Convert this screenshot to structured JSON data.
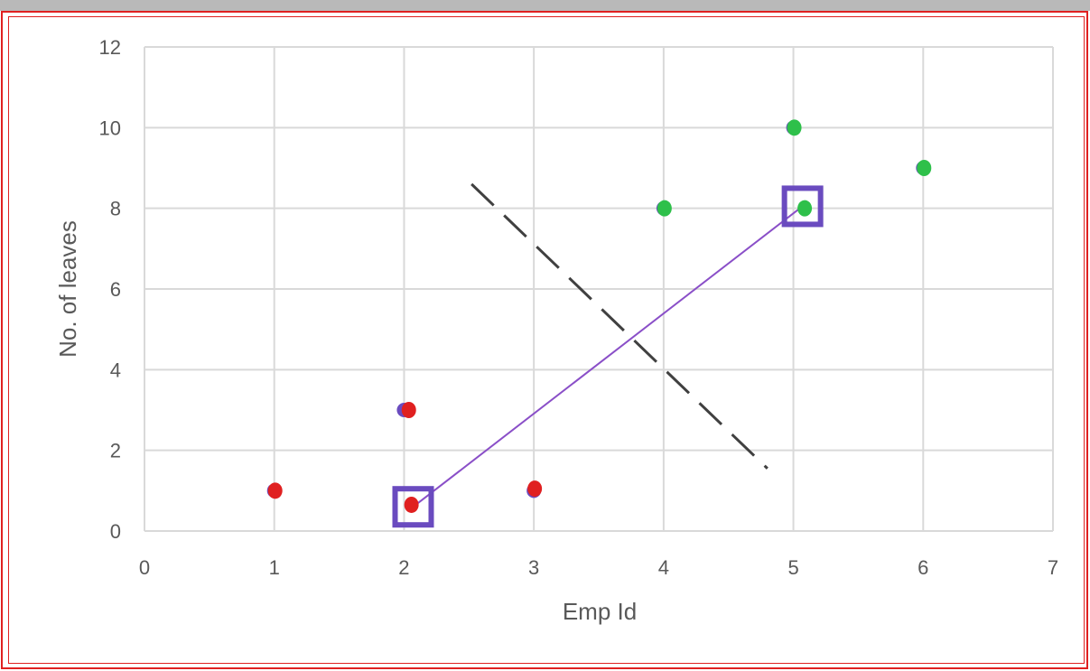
{
  "chart_data": {
    "type": "scatter",
    "title": "",
    "xlabel": "Emp Id",
    "ylabel": "No. of leaves",
    "xlim": [
      0,
      7
    ],
    "ylim": [
      0,
      12
    ],
    "x_ticks": [
      "0",
      "1",
      "2",
      "3",
      "4",
      "5",
      "6",
      "7"
    ],
    "y_ticks": [
      "0",
      "2",
      "4",
      "6",
      "8",
      "10",
      "12"
    ],
    "grid": true,
    "series": [
      {
        "values": [
          {
            "x": 1,
            "y": 1
          },
          {
            "x": 2,
            "y": 3
          },
          {
            "x": 3,
            "y": 1
          },
          {
            "x": 4,
            "y": 8
          },
          {
            "x": 5,
            "y": 10
          },
          {
            "x": 6,
            "y": 9
          }
        ]
      }
    ],
    "overlay_points": [
      {
        "x": 1,
        "y": 1.0,
        "color": "#e02020"
      },
      {
        "x": 2.03,
        "y": 3.0,
        "color": "#e02020"
      },
      {
        "x": 3,
        "y": 1.05,
        "color": "#e02020"
      },
      {
        "x": 2.05,
        "y": 0.65,
        "color": "#e02020"
      },
      {
        "x": 4,
        "y": 8.0,
        "color": "#2ec04a"
      },
      {
        "x": 5,
        "y": 10.0,
        "color": "#2ec04a"
      },
      {
        "x": 6,
        "y": 9.0,
        "color": "#2ec04a"
      },
      {
        "x": 5.08,
        "y": 8.0,
        "color": "#2ec04a"
      }
    ],
    "highlight_boxes": [
      {
        "x": 2.07,
        "y": 0.6
      },
      {
        "x": 5.07,
        "y": 8.05
      }
    ],
    "connector_line": {
      "from": {
        "x": 2.07,
        "y": 0.6
      },
      "to": {
        "x": 5.07,
        "y": 8.05
      },
      "color": "#8a4fc8"
    },
    "dashed_line": {
      "from": {
        "x": 2.52,
        "y": 8.6
      },
      "to": {
        "x": 4.8,
        "y": 1.55
      },
      "color": "#404040"
    },
    "colors": {
      "series_marker": "#6a4bbf",
      "highlight_box": "#6a4bbf",
      "grid": "#d9d9d9",
      "text": "#595959"
    }
  }
}
